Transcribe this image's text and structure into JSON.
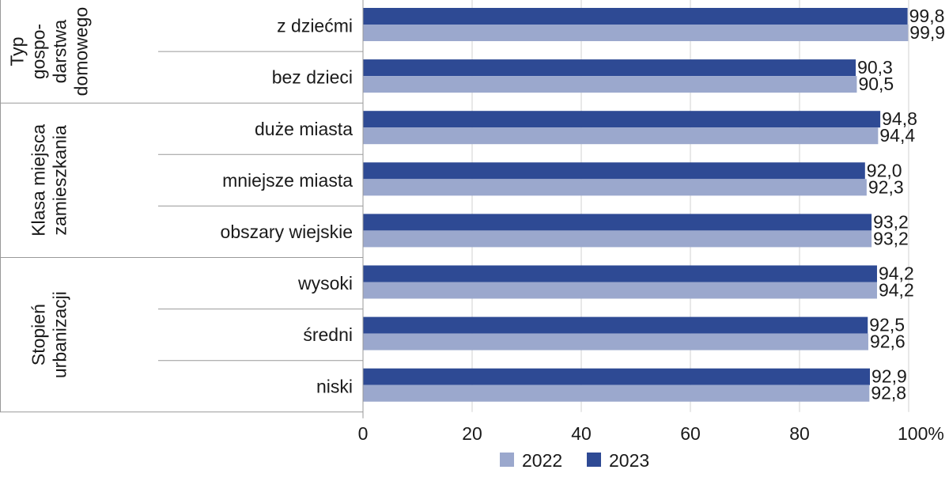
{
  "chart_data": {
    "type": "bar",
    "orientation": "horizontal",
    "groups": [
      {
        "label_lines": [
          "Typ",
          "gospo-",
          "darstwa",
          "domowego"
        ],
        "categories": [
          "z dziećmi",
          "bez dzieci"
        ]
      },
      {
        "label_lines": [
          "Klasa miejsca",
          "zamieszkania"
        ],
        "categories": [
          "duże miasta",
          "mniejsze miasta",
          "obszary wiejskie"
        ]
      },
      {
        "label_lines": [
          "Stopień",
          "urbanizacji"
        ],
        "categories": [
          "wysoki",
          "średni",
          "niski"
        ]
      }
    ],
    "categories": [
      "z dziećmi",
      "bez dzieci",
      "duże miasta",
      "mniejsze miasta",
      "obszary wiejskie",
      "wysoki",
      "średni",
      "niski"
    ],
    "series": [
      {
        "name": "2023",
        "color": "#2e4a94",
        "values": [
          99.8,
          90.3,
          94.8,
          92.0,
          93.2,
          94.2,
          92.5,
          92.9
        ],
        "value_labels": [
          "99,8",
          "90,3",
          "94,8",
          "92,0",
          "93,2",
          "94,2",
          "92,5",
          "92,9"
        ]
      },
      {
        "name": "2022",
        "color": "#9ba8cd",
        "values": [
          99.9,
          90.5,
          94.4,
          92.3,
          93.2,
          94.2,
          92.6,
          92.8
        ],
        "value_labels": [
          "99,9",
          "90,5",
          "94,4",
          "92,3",
          "93,2",
          "94,2",
          "92,6",
          "92,8"
        ]
      }
    ],
    "xlim": [
      0,
      100
    ],
    "xticks": [
      0,
      20,
      40,
      60,
      80,
      100
    ],
    "xtick_labels": [
      "0",
      "20",
      "40",
      "60",
      "80",
      "100%"
    ],
    "grid": "vertical",
    "grid_color": "#d0d0d0",
    "legend": {
      "position": "bottom",
      "order": [
        "2022",
        "2023"
      ]
    }
  }
}
